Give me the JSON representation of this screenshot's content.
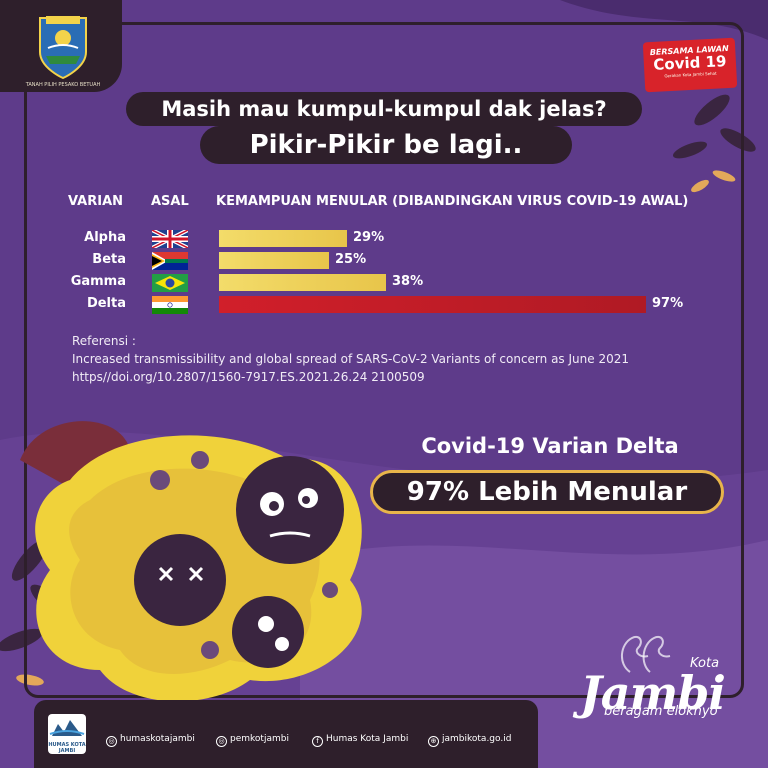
{
  "headline": {
    "line1": "Masih mau kumpul-kumpul dak jelas?",
    "line2": "Pikir-Pikir be lagi.."
  },
  "logo": {
    "name": "Kota Jambi coat of arms",
    "top_text": "KOTA JAMBI",
    "caption": "TANAH PILIH PESAKO BETUAH"
  },
  "badge": {
    "line1": "BERSAMA LAWAN",
    "line2": "Covid 19",
    "line3": "Gerakan Kota Jambi Sehat"
  },
  "table": {
    "col_varian": "VARIAN",
    "col_asal": "ASAL",
    "col_kemampuan": "KEMAMPUAN MENULAR (DIBANDINGKAN VIRUS COVID-19 AWAL)",
    "rows": [
      {
        "label": "Alpha",
        "flag": "united-kingdom-flag",
        "value_text": "29%"
      },
      {
        "label": "Beta",
        "flag": "south-africa-flag",
        "value_text": "25%"
      },
      {
        "label": "Gamma",
        "flag": "brazil-flag",
        "value_text": "38%"
      },
      {
        "label": "Delta",
        "flag": "india-flag",
        "value_text": "97%"
      }
    ]
  },
  "chart_data": {
    "type": "bar",
    "orientation": "horizontal",
    "categories": [
      "Alpha",
      "Beta",
      "Gamma",
      "Delta"
    ],
    "values": [
      29,
      25,
      38,
      97
    ],
    "unit": "%",
    "xlabel": "KEMAMPUAN MENULAR (DIBANDINGKAN VIRUS COVID-19 AWAL)",
    "xlim": [
      0,
      100
    ],
    "grid": false,
    "colors": {
      "default": "#e8c54a",
      "highlight": "#d11f2a"
    }
  },
  "reference": {
    "label": "Referensi :",
    "line1": "Increased transmissibility and global spread of SARS-CoV-2 Variants of concern as June 2021",
    "line2": "https//doi.org/10.2807/1560-7917.ES.2021.26.24 2100509"
  },
  "delta": {
    "title": "Covid-19 Varian Delta",
    "highlight": "97% Lebih Menular"
  },
  "footer": {
    "logo_text": "HUMAS KOTA JAMBI",
    "instagram1": "humaskotajambi",
    "instagram2": "pemkotjambi",
    "facebook": "Humas Kota Jambi",
    "website": "jambikota.go.id"
  },
  "brand": {
    "kota": "Kota",
    "name": "Jambi",
    "tagline": "beragam eloknyo"
  },
  "colors": {
    "background": "#5e3b8a",
    "dark": "#2e1f2b",
    "gold": "#e8c54a",
    "red": "#d11f2a"
  }
}
